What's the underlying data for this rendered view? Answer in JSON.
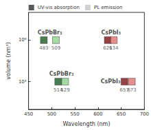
{
  "chart_data": {
    "type": "scatter",
    "xlabel": "Wavelength (nm)",
    "ylabel": "volume (nm³)",
    "xlim": [
      450,
      700
    ],
    "xticks": [
      450,
      500,
      550,
      600,
      650,
      700
    ],
    "ylim": [
      10,
      100000000
    ],
    "yticks": [
      {
        "value": 1000,
        "label": "10³"
      },
      {
        "value": 1000000,
        "label": "10⁶"
      }
    ],
    "log": "y",
    "grid": false,
    "legend": "top",
    "data_labels": true,
    "series": [
      {
        "name": "UV-vis absorption",
        "marker": "square",
        "color": "#2e2e2e",
        "x": [
          483,
          621,
          514,
          657
        ],
        "values": [
          1000000,
          1000000,
          1000,
          1000
        ],
        "colors": [
          "#1e5c28",
          "#7a1414",
          "#1e5c28",
          "#7a1414"
        ]
      },
      {
        "name": "PL emission",
        "marker": "square",
        "color": "#c4c4c4",
        "x": [
          509,
          634,
          529,
          673
        ],
        "values": [
          1000000,
          1000000,
          1000,
          1000
        ],
        "colors": [
          "#8fd18f",
          "#e07070",
          "#8fd18f",
          "#e07070"
        ]
      }
    ],
    "annotations": [
      {
        "text": "CsPbBr₃",
        "x": 496,
        "y": 3500000
      },
      {
        "text": "CsPbI₃",
        "x": 628,
        "y": 3500000
      },
      {
        "text": "CsPbBr₃",
        "x": 521,
        "y": 3500
      },
      {
        "text": "CsPbI₃",
        "x": 627,
        "y": 1000
      }
    ]
  }
}
